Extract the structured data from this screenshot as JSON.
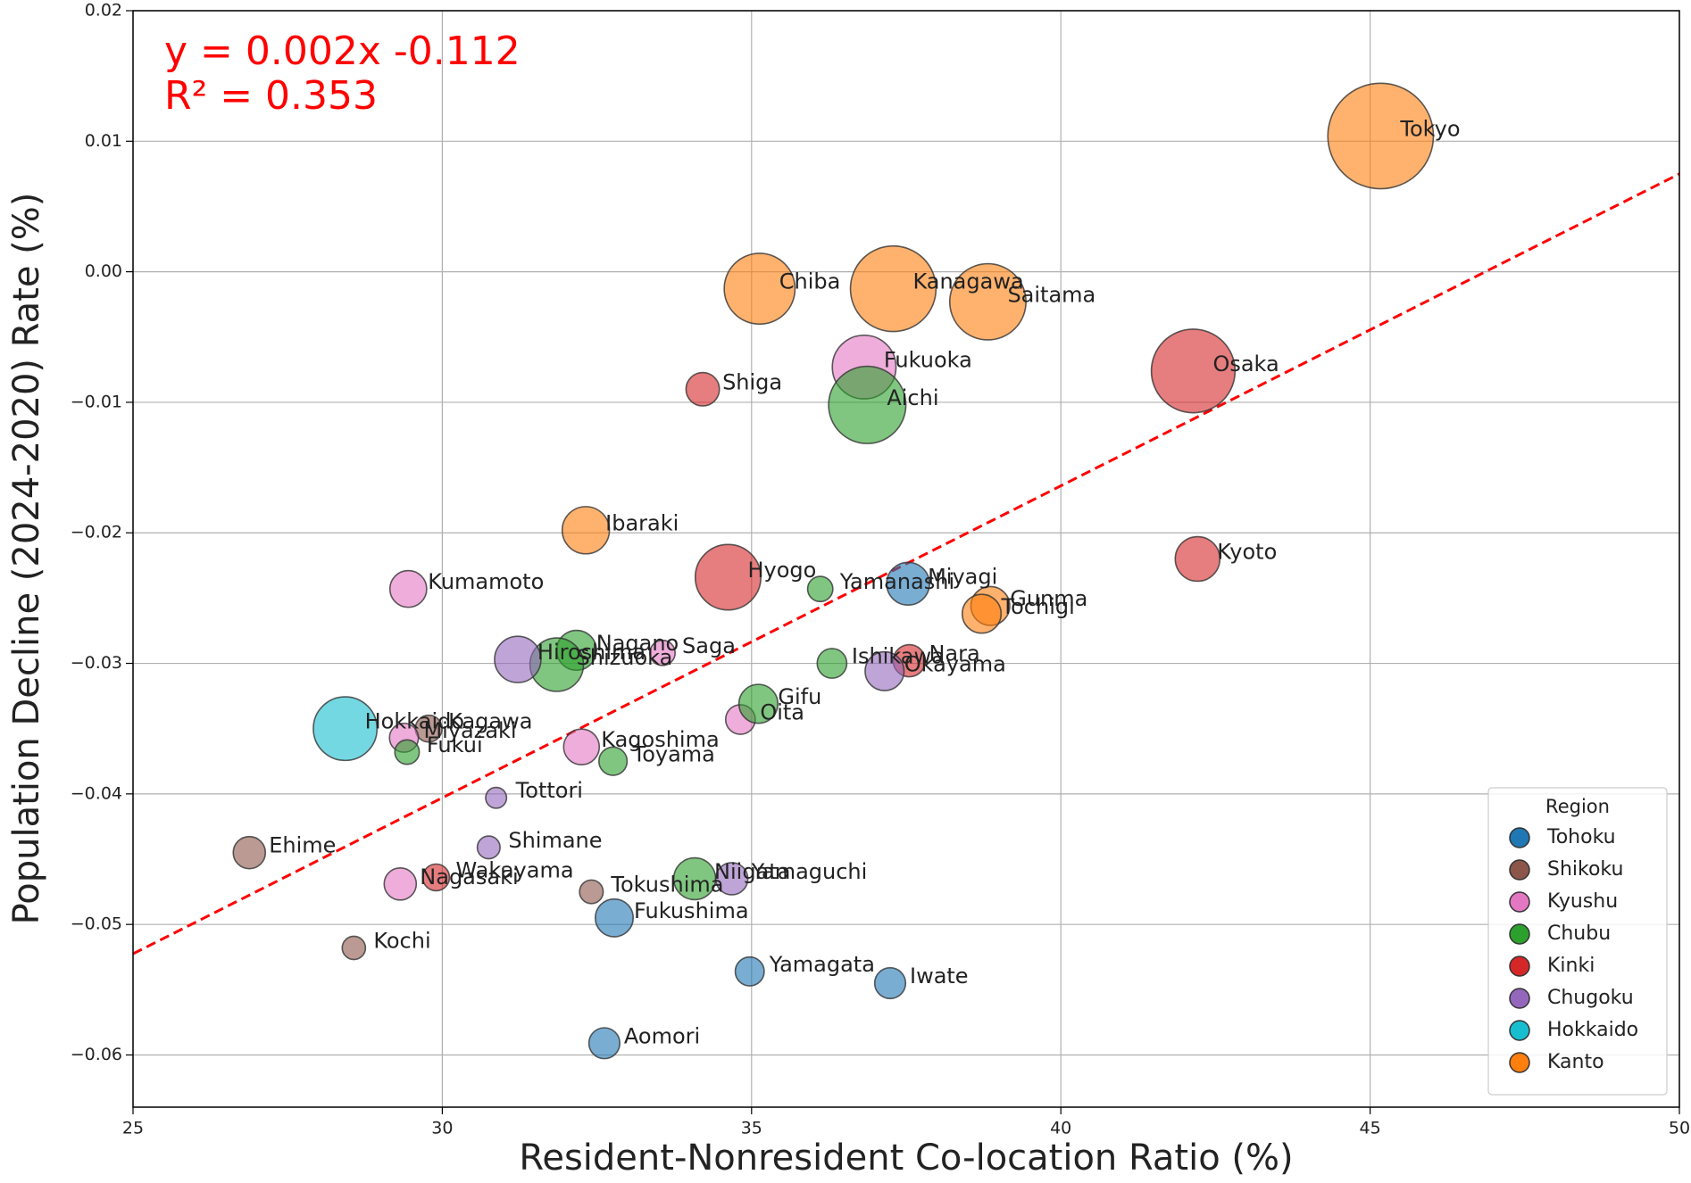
{
  "chart_data": {
    "type": "scatter",
    "x_label": "Resident-Nonresident Co-location Ratio (%)",
    "y_label": "Population Decline (2024-2020) Rate (%)",
    "annotations": [
      "y = 0.002x -0.112",
      "R² = 0.353"
    ],
    "trendline": {
      "slope": 0.00239,
      "intercept": -0.112,
      "color": "#ff0000"
    },
    "xlim": [
      25,
      50
    ],
    "xticks": [
      25,
      30,
      35,
      40,
      45,
      50
    ],
    "ylim": [
      -0.064,
      0.02
    ],
    "yticks": [
      {
        "value": -0.06,
        "label": "−0.06"
      },
      {
        "value": -0.05,
        "label": "−0.05"
      },
      {
        "value": -0.04,
        "label": "−0.04"
      },
      {
        "value": -0.03,
        "label": "−0.03"
      },
      {
        "value": -0.02,
        "label": "−0.02"
      },
      {
        "value": -0.01,
        "label": "−0.01"
      },
      {
        "value": 0,
        "label": "0.00"
      },
      0.01,
      0.02
    ],
    "grid": true,
    "legend_title": "Region",
    "legend_loc": "lower right",
    "series": [
      {
        "name": "Tohoku",
        "color": "#1f77b4",
        "labels": [
          "Miyagi",
          "Fukushima",
          "Yamagata",
          "Iwate",
          "Aomori"
        ],
        "x": [
          37.53,
          32.78,
          34.97,
          37.24,
          32.62
        ],
        "values": [
          -0.0239,
          -0.0495,
          -0.0536,
          -0.0545,
          -0.0591
        ],
        "sizes": [
          2.3,
          1.8,
          1.05,
          1.2,
          1.2
        ]
      },
      {
        "name": "Shikoku",
        "color": "#8c564b",
        "labels": [
          "Kagawa",
          "Ehime",
          "Tokushima",
          "Kochi"
        ],
        "x": [
          29.78,
          26.88,
          32.41,
          28.57
        ],
        "values": [
          -0.035,
          -0.0445,
          -0.0475,
          -0.0518
        ],
        "sizes": [
          0.9,
          1.3,
          0.7,
          0.68
        ]
      },
      {
        "name": "Kyushu",
        "color": "#e377c2",
        "labels": [
          "Fukuoka",
          "Kumamoto",
          "Saga",
          "Oita",
          "Miyazaki",
          "Kagoshima",
          "Nagasaki"
        ],
        "x": [
          36.82,
          29.45,
          33.56,
          34.82,
          29.38,
          32.25,
          29.32
        ],
        "values": [
          -0.0073,
          -0.0243,
          -0.0292,
          -0.0343,
          -0.0357,
          -0.0364,
          -0.0469
        ],
        "sizes": [
          5.1,
          1.7,
          0.8,
          1.1,
          1.05,
          1.6,
          1.3
        ]
      },
      {
        "name": "Chubu",
        "color": "#2ca02c",
        "labels": [
          "Aichi",
          "Yamanashi",
          "Nagano",
          "Shizuoka",
          "Ishikawa",
          "Gifu",
          "Fukui",
          "Toyama",
          "Niigata"
        ],
        "x": [
          36.87,
          36.11,
          32.17,
          31.85,
          36.3,
          35.11,
          29.43,
          32.76,
          34.08
        ],
        "values": [
          -0.0102,
          -0.0243,
          -0.029,
          -0.0301,
          -0.03,
          -0.0331,
          -0.0368,
          -0.0375,
          -0.0465
        ],
        "sizes": [
          7.5,
          0.8,
          2.0,
          3.6,
          1.1,
          1.9,
          0.75,
          1.0,
          2.2
        ]
      },
      {
        "name": "Kinki",
        "color": "#d62728",
        "labels": [
          "Osaka",
          "Shiga",
          "Kyoto",
          "Hyogo",
          "Nara",
          "Wakayama"
        ],
        "x": [
          42.14,
          34.21,
          42.21,
          34.62,
          37.55,
          29.9
        ],
        "values": [
          -0.0076,
          -0.009,
          -0.022,
          -0.0234,
          -0.0298,
          -0.0464
        ],
        "sizes": [
          8.8,
          1.4,
          2.5,
          5.4,
          1.3,
          0.9
        ]
      },
      {
        "name": "Chugoku",
        "color": "#9467bd",
        "labels": [
          "Hiroshima",
          "Okayama",
          "Tottori",
          "Shimane",
          "Yamaguchi"
        ],
        "x": [
          31.22,
          37.15,
          30.87,
          30.75,
          34.68
        ],
        "values": [
          -0.0297,
          -0.0306,
          -0.0403,
          -0.0441,
          -0.0465
        ],
        "sizes": [
          2.7,
          1.9,
          0.55,
          0.65,
          1.3
        ]
      },
      {
        "name": "Hokkaido",
        "color": "#17becf",
        "labels": [
          "Hokkaido"
        ],
        "x": [
          28.43
        ],
        "values": [
          -0.035
        ],
        "sizes": [
          5.1
        ]
      },
      {
        "name": "Kanto",
        "color": "#ff7f0e",
        "labels": [
          "Tokyo",
          "Chiba",
          "Kanagawa",
          "Saitama",
          "Ibaraki",
          "Gunma",
          "Tochigi"
        ],
        "x": [
          45.17,
          35.13,
          37.29,
          38.82,
          32.32,
          38.86,
          38.72
        ],
        "values": [
          0.0104,
          -0.0013,
          -0.0013,
          -0.0023,
          -0.0198,
          -0.0256,
          -0.0262
        ],
        "sizes": [
          14.0,
          6.3,
          9.2,
          7.3,
          2.8,
          1.9,
          1.9
        ]
      }
    ]
  }
}
